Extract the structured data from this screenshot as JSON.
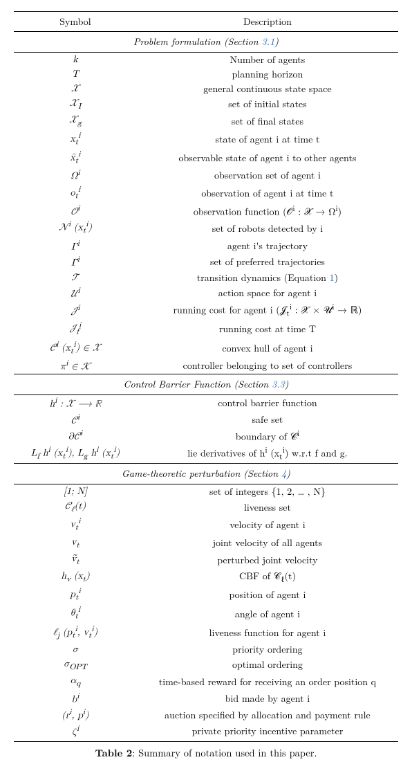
{
  "header": {
    "col1": "Symbol",
    "col2": "Description"
  },
  "sections": [
    {
      "title_prefix": "Problem formulation (Section ",
      "title_link": "3.1",
      "title_suffix": ")",
      "rows": [
        {
          "sym": "k",
          "desc": "Number of agents"
        },
        {
          "sym": "T",
          "desc": "planning horizon"
        },
        {
          "sym": "𝒳",
          "desc": "general continuous state space"
        },
        {
          "sym": "𝒳_I",
          "desc": "set of initial states"
        },
        {
          "sym": "𝒳_g",
          "desc": "set of final states"
        },
        {
          "sym": "x_t^i",
          "desc": "state of agent i at time t"
        },
        {
          "sym": "x̄_t^i",
          "desc": "observable state of agent i to other agents"
        },
        {
          "sym": "Ω^i",
          "desc": "observation set of agent i"
        },
        {
          "sym": "o_t^i",
          "desc": "observation of agent i at time t"
        },
        {
          "sym": "𝒪^i",
          "desc": "observation function (𝒪^i : 𝒳 → Ω^i)"
        },
        {
          "sym": "𝒩^i (x_t^i)",
          "desc": "set of robots detected by i"
        },
        {
          "sym": "Γ^i",
          "desc": "agent i's trajectory"
        },
        {
          "sym": "Γ̃^i",
          "desc": "set of preferred trajectories"
        },
        {
          "sym": "𝒯",
          "desc_prefix": "transition dynamics (Equation ",
          "desc_link": "1",
          "desc_suffix": ")"
        },
        {
          "sym": "𝒰^i",
          "desc": "action space for agent i"
        },
        {
          "sym": "𝒥^i",
          "desc": "running cost for agent i (𝒥_t^i : 𝒳 × 𝒰^i → ℝ)"
        },
        {
          "sym": "𝒥_f^i",
          "desc": "running cost at time T"
        },
        {
          "sym": "𝒞^i (x_t^i) ∈ 𝒳",
          "desc": "convex hull of agent i"
        },
        {
          "sym": "π^i ∈ 𝒦",
          "desc": "controller belonging to set of controllers"
        }
      ]
    },
    {
      "title_prefix": "Control Barrier Function (Section ",
      "title_link": "3.3",
      "title_suffix": ")",
      "rows": [
        {
          "sym": "h^i : 𝒳 ⟶ ℝ",
          "desc": "control barrier function"
        },
        {
          "sym": "𝒞^i",
          "desc": "safe set"
        },
        {
          "sym": "∂𝒞^i",
          "desc": "boundary of 𝒞^i"
        },
        {
          "sym": "L_f h^i (x_t^i), L_g h^i (x_t^i)",
          "desc": "lie derivatives of h^i (x_t^i) w.r.t f and g."
        }
      ]
    },
    {
      "title_prefix": "Game-theoretic perturbation (Section ",
      "title_link": "4",
      "title_suffix": ")",
      "rows": [
        {
          "sym": "[1; N]",
          "desc": "set of integers {1, 2, … , N}"
        },
        {
          "sym": "𝒞_ℓ(t)",
          "desc": "liveness set"
        },
        {
          "sym": "v_t^i",
          "desc": "velocity of agent i"
        },
        {
          "sym": "v_t",
          "desc": "joint velocity of all agents"
        },
        {
          "sym": "ṽ_t",
          "desc": "perturbed joint velocity"
        },
        {
          "sym": "h_v (x_t)",
          "desc": "CBF of 𝒞_ℓ(t)"
        },
        {
          "sym": "p_t^i",
          "desc": "position of agent i"
        },
        {
          "sym": "θ_t^i",
          "desc": "angle of agent i"
        },
        {
          "sym": "ℓ_j (p_t^i, v_t^i)",
          "desc": "liveness function for agent i"
        },
        {
          "sym": "σ",
          "desc": "priority ordering"
        },
        {
          "sym": "σ_OPT",
          "desc": "optimal ordering"
        },
        {
          "sym": "α_q",
          "desc": "time-based reward for receiving an order position q"
        },
        {
          "sym": "b^i",
          "desc": "bid made by agent i"
        },
        {
          "sym": "(r^i, p^i)",
          "desc": "auction specified by allocation and payment rule"
        },
        {
          "sym": "ζ^i",
          "desc": "private priority incentive parameter"
        }
      ]
    }
  ],
  "caption": {
    "label": "Table 2",
    "text": ": Summary of notation used in this paper."
  }
}
